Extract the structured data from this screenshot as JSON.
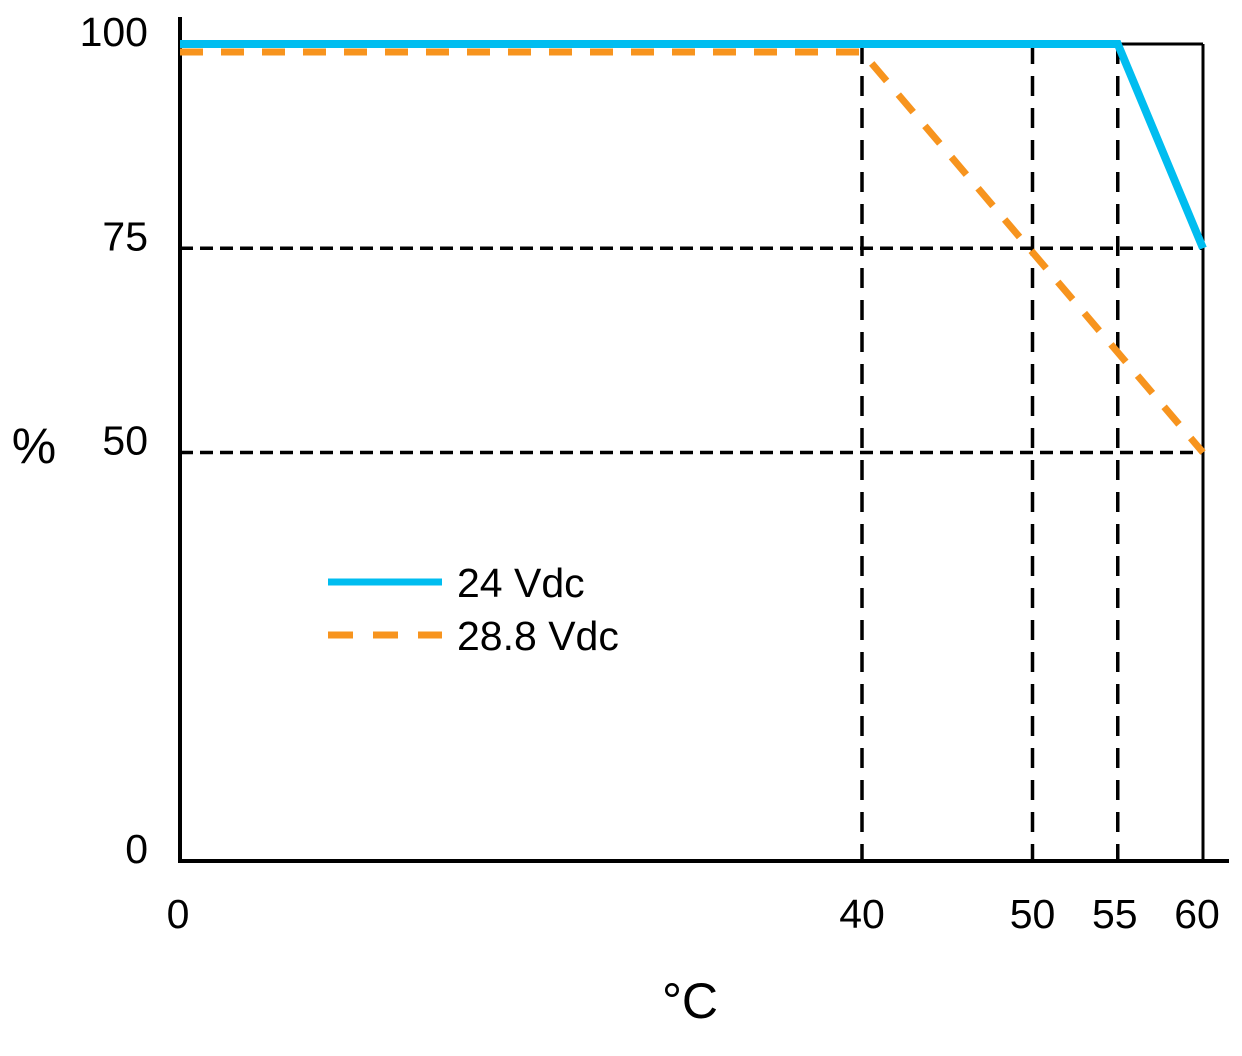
{
  "chart_data": {
    "type": "line",
    "title": "",
    "xlabel": "°C",
    "ylabel": "%",
    "xlim": [
      0,
      60
    ],
    "ylim": [
      0,
      100
    ],
    "x_ticks": [
      {
        "value": 0,
        "label": "0"
      },
      {
        "value": 40,
        "label": "40"
      },
      {
        "value": 50,
        "label": "50"
      },
      {
        "value": 55,
        "label": "55"
      },
      {
        "value": 60,
        "label": "60"
      }
    ],
    "y_ticks": [
      {
        "value": 100,
        "label": "100"
      },
      {
        "value": 75,
        "label": "75"
      },
      {
        "value": 50,
        "label": "50"
      },
      {
        "value": 0,
        "label": "0"
      }
    ],
    "gridlines": {
      "x_dashed": [
        40,
        50,
        55
      ],
      "y_dashed": [
        75,
        50
      ],
      "style": "dashed-black"
    },
    "series": [
      {
        "name": "24 Vdc",
        "style": "solid",
        "color": "#00BDF0",
        "points": [
          [
            0,
            100
          ],
          [
            55,
            100
          ],
          [
            60,
            75
          ]
        ]
      },
      {
        "name": "28.8 Vdc",
        "style": "dashed",
        "color": "#F7941E",
        "points": [
          [
            0,
            100
          ],
          [
            40,
            100
          ],
          [
            60,
            50
          ]
        ]
      }
    ],
    "legend_position": "inside-center-left",
    "axis_color": "#000000",
    "grid_color": "#000000",
    "background": "#FFFFFF",
    "grid": true
  }
}
